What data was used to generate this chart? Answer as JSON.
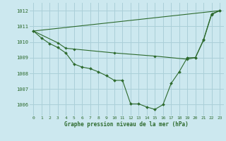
{
  "title": "Graphe pression niveau de la mer (hPa)",
  "bg_color": "#cce8ef",
  "grid_color": "#aacfd8",
  "line_color": "#2d6a2d",
  "marker_color": "#2d6a2d",
  "xlim": [
    -0.5,
    23.5
  ],
  "ylim": [
    1005.3,
    1012.5
  ],
  "yticks": [
    1006,
    1007,
    1008,
    1009,
    1010,
    1011,
    1012
  ],
  "xticks": [
    0,
    1,
    2,
    3,
    4,
    5,
    6,
    7,
    8,
    9,
    10,
    11,
    12,
    13,
    14,
    15,
    16,
    17,
    18,
    19,
    20,
    21,
    22,
    23
  ],
  "series": [
    {
      "x": [
        0,
        1,
        2,
        3,
        4,
        5,
        6,
        7,
        8,
        9,
        10,
        11,
        12,
        13,
        14,
        15,
        16,
        17,
        18,
        19,
        20,
        21,
        22,
        23
      ],
      "y": [
        1010.7,
        1010.25,
        1009.9,
        1009.65,
        1009.3,
        1008.6,
        1008.4,
        1008.3,
        1008.1,
        1007.85,
        1007.55,
        1007.55,
        1006.05,
        1006.05,
        1005.85,
        1005.7,
        1006.0,
        1007.35,
        1008.1,
        1009.0,
        1009.0,
        1010.15,
        1011.8,
        1012.0
      ]
    },
    {
      "x": [
        0,
        23
      ],
      "y": [
        1010.7,
        1012.0
      ]
    },
    {
      "x": [
        0,
        3,
        4,
        5,
        10,
        15,
        19,
        20,
        21,
        22,
        23
      ],
      "y": [
        1010.7,
        1009.95,
        1009.6,
        1009.55,
        1009.3,
        1009.1,
        1008.9,
        1009.0,
        1010.1,
        1011.75,
        1012.0
      ]
    }
  ]
}
